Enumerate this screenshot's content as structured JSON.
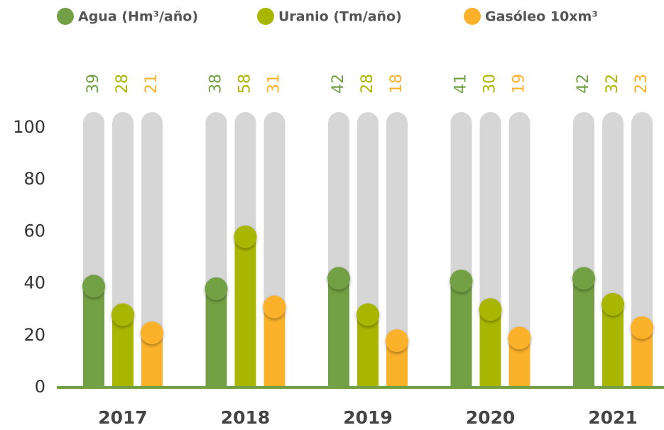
{
  "chart_data": {
    "type": "bar",
    "categories": [
      "2017",
      "2018",
      "2019",
      "2020",
      "2021"
    ],
    "series": [
      {
        "name": "Agua (Hm³/año)",
        "color": "#73a044",
        "values": [
          39,
          38,
          42,
          41,
          42
        ]
      },
      {
        "name": "Uranio (Tm/año)",
        "color": "#a9b600",
        "values": [
          28,
          58,
          28,
          30,
          32
        ]
      },
      {
        "name": "Gasóleo 10xm³",
        "color": "#fbb12a",
        "values": [
          21,
          31,
          18,
          19,
          23
        ]
      }
    ],
    "ylim": [
      0,
      100
    ],
    "yticks": [
      0,
      20,
      40,
      60,
      80,
      100
    ]
  }
}
